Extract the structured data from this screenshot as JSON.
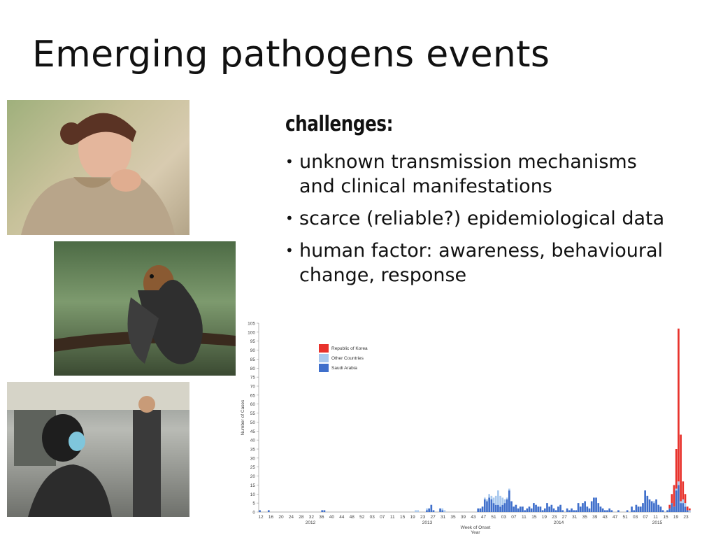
{
  "slide": {
    "title": "Emerging pathogens events",
    "challenges_heading": "challenges:",
    "bullets": [
      "unknown transmission mechanisms and clinical manifestations",
      "scarce (reliable?) epidemiological data",
      "human factor: awareness, behavioural change, response"
    ]
  },
  "photos": [
    {
      "name": "woman coughing"
    },
    {
      "name": "fruit bat hanging on branch"
    },
    {
      "name": "subway passenger wearing mask"
    }
  ],
  "colors": {
    "korea": "#e8322c",
    "other": "#a8c8ee",
    "saudi": "#3f6fcb",
    "axis": "#999999"
  },
  "chart_data": {
    "type": "bar",
    "stacked": true,
    "xlabel": "Week of Onset",
    "xlabel2": "Year",
    "ylabel": "Number of Cases",
    "ylim": [
      0,
      105
    ],
    "yticks": [
      0,
      5,
      10,
      15,
      20,
      25,
      30,
      35,
      40,
      45,
      50,
      55,
      60,
      65,
      70,
      75,
      80,
      85,
      90,
      95,
      100,
      105
    ],
    "week_labels": [
      "12",
      "16",
      "20",
      "24",
      "28",
      "32",
      "36",
      "40",
      "44",
      "48",
      "52",
      "03",
      "07",
      "11",
      "15",
      "19",
      "23",
      "27",
      "31",
      "35",
      "39",
      "43",
      "47",
      "51",
      "03",
      "07",
      "11",
      "15",
      "19",
      "23",
      "27",
      "31",
      "35",
      "39",
      "43",
      "47",
      "51",
      "03",
      "07",
      "11",
      "15",
      "19",
      "23"
    ],
    "year_labels": [
      "2012",
      "2013",
      "2014",
      "2015"
    ],
    "legend": [
      "Republic of Korea",
      "Other Countries",
      "Saudi Arabia"
    ],
    "legend_position": "top-left",
    "series": [
      {
        "name": "Republic of Korea",
        "values": [
          0,
          0,
          0,
          0,
          0,
          0,
          0,
          0,
          0,
          0,
          0,
          0,
          0,
          0,
          0,
          0,
          0,
          0,
          0,
          0,
          0,
          0,
          0,
          0,
          0,
          0,
          0,
          0,
          0,
          0,
          0,
          0,
          0,
          0,
          0,
          0,
          0,
          0,
          0,
          0,
          0,
          0,
          0,
          0,
          0,
          0,
          0,
          0,
          0,
          0,
          0,
          0,
          0,
          0,
          0,
          0,
          0,
          0,
          0,
          0,
          0,
          0,
          0,
          0,
          0,
          0,
          0,
          0,
          0,
          0,
          0,
          0,
          0,
          0,
          0,
          0,
          0,
          0,
          0,
          0,
          0,
          0,
          0,
          0,
          0,
          0,
          0,
          0,
          0,
          0,
          0,
          0,
          0,
          0,
          0,
          0,
          0,
          0,
          0,
          0,
          0,
          0,
          0,
          0,
          0,
          0,
          0,
          0,
          0,
          0,
          0,
          0,
          0,
          0,
          0,
          0,
          0,
          0,
          0,
          0,
          0,
          0,
          0,
          0,
          0,
          0,
          0,
          0,
          0,
          0,
          0,
          0,
          0,
          0,
          0,
          0,
          0,
          0,
          0,
          0,
          0,
          0,
          0,
          0,
          0,
          0,
          0,
          0,
          0,
          0,
          0,
          0,
          0,
          0,
          0,
          0,
          0,
          0,
          0,
          0,
          0,
          0,
          0,
          0,
          0,
          0,
          0,
          0,
          0,
          0,
          0,
          0,
          0,
          0,
          0,
          0,
          0,
          0,
          0,
          0,
          0,
          0,
          0,
          0,
          2,
          5,
          12,
          22,
          85,
          37,
          10,
          5,
          2,
          1
        ]
      },
      {
        "name": "Other Countries",
        "values": [
          0,
          0,
          0,
          0,
          0,
          0,
          0,
          0,
          0,
          0,
          0,
          0,
          0,
          0,
          0,
          0,
          0,
          0,
          0,
          0,
          0,
          0,
          0,
          0,
          0,
          0,
          0,
          0,
          0,
          0,
          0,
          0,
          0,
          0,
          0,
          0,
          0,
          0,
          0,
          0,
          0,
          0,
          0,
          0,
          0,
          0,
          0,
          0,
          0,
          0,
          0,
          0,
          0,
          0,
          0,
          0,
          0,
          0,
          0,
          0,
          0,
          0,
          0,
          0,
          0,
          0,
          0,
          0,
          0,
          0,
          1,
          1,
          0,
          0,
          0,
          1,
          0,
          0,
          0,
          0,
          0,
          0,
          1,
          1,
          0,
          0,
          0,
          0,
          0,
          0,
          0,
          0,
          0,
          0,
          0,
          0,
          0,
          0,
          0,
          0,
          0,
          1,
          1,
          2,
          2,
          3,
          5,
          8,
          6,
          4,
          2,
          1,
          1,
          0,
          0,
          0,
          0,
          0,
          0,
          0,
          0,
          0,
          0,
          0,
          0,
          0,
          0,
          0,
          0,
          0,
          0,
          0,
          0,
          0,
          0,
          0,
          0,
          0,
          0,
          0,
          0,
          0,
          0,
          0,
          0,
          0,
          0,
          0,
          0,
          0,
          0,
          0,
          0,
          0,
          0,
          0,
          0,
          0,
          0,
          0,
          0,
          0,
          0,
          0,
          0,
          0,
          0,
          0,
          0,
          0,
          0,
          0,
          0,
          0,
          0,
          0,
          0,
          1,
          0,
          0,
          0,
          0,
          0,
          0,
          0,
          0,
          0,
          1,
          2,
          1,
          2,
          2,
          0,
          1,
          0,
          0
        ]
      },
      {
        "name": "Saudi Arabia",
        "values": [
          1,
          0,
          0,
          0,
          1,
          0,
          0,
          0,
          0,
          0,
          0,
          0,
          0,
          0,
          0,
          0,
          0,
          0,
          0,
          0,
          0,
          0,
          0,
          0,
          0,
          0,
          0,
          0,
          1,
          1,
          0,
          0,
          0,
          0,
          0,
          0,
          0,
          0,
          0,
          0,
          0,
          0,
          0,
          0,
          0,
          0,
          0,
          0,
          0,
          0,
          0,
          0,
          0,
          0,
          0,
          0,
          0,
          0,
          0,
          0,
          0,
          0,
          0,
          0,
          0,
          0,
          0,
          0,
          0,
          0,
          0,
          0,
          0,
          0,
          0,
          1,
          2,
          4,
          1,
          0,
          0,
          2,
          1,
          0,
          0,
          0,
          0,
          0,
          0,
          0,
          0,
          0,
          0,
          0,
          0,
          0,
          0,
          0,
          2,
          2,
          3,
          7,
          6,
          8,
          7,
          5,
          4,
          4,
          3,
          4,
          5,
          7,
          12,
          6,
          3,
          4,
          2,
          3,
          3,
          1,
          2,
          3,
          2,
          5,
          4,
          3,
          3,
          1,
          2,
          5,
          3,
          4,
          2,
          1,
          3,
          4,
          1,
          0,
          2,
          1,
          2,
          1,
          1,
          5,
          3,
          5,
          6,
          3,
          2,
          6,
          8,
          8,
          5,
          3,
          2,
          1,
          1,
          2,
          1,
          0,
          0,
          1,
          0,
          0,
          0,
          1,
          0,
          3,
          1,
          4,
          3,
          3,
          5,
          12,
          9,
          7,
          6,
          5,
          7,
          4,
          3,
          1,
          0,
          1,
          2,
          5,
          3,
          12,
          15,
          5,
          5,
          3,
          1,
          0
        ]
      }
    ]
  }
}
